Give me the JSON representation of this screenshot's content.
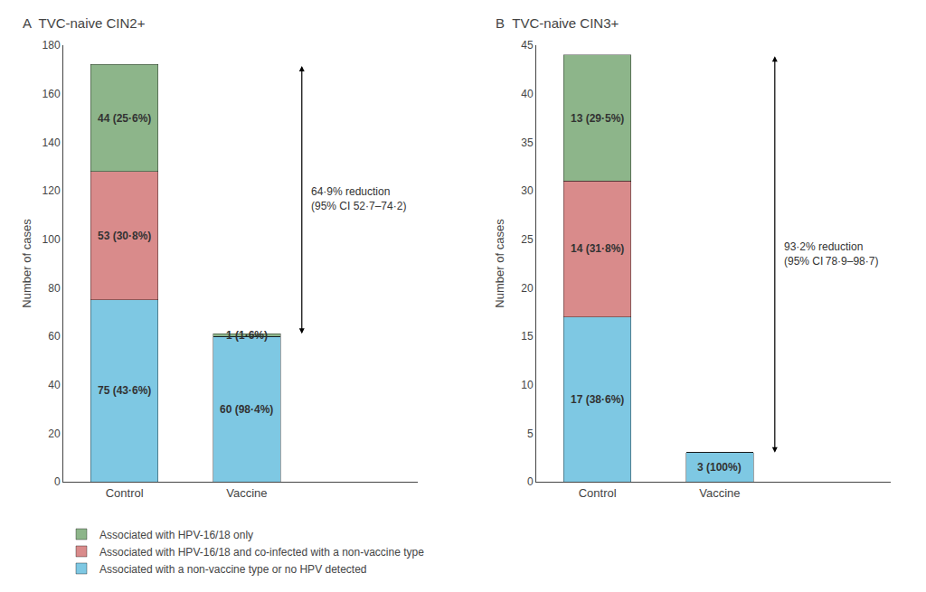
{
  "chart_data": [
    {
      "type": "bar",
      "stacked": true,
      "title": "A  TVC-naive CIN2+",
      "ylabel": "Number of cases",
      "categories": [
        "Control",
        "Vaccine"
      ],
      "series": [
        {
          "name": "Associated with a non-vaccine type or no HPV detected",
          "color": "#7EC8E3",
          "values": [
            75,
            60
          ],
          "value_labels": [
            "75 (43·6%)",
            "60 (98·4%)"
          ]
        },
        {
          "name": "Associated with HPV-16/18 and co-infected with a non-vaccine type",
          "color": "#D98B8B",
          "values": [
            53,
            0
          ],
          "value_labels": [
            "53 (30·8%)",
            null
          ]
        },
        {
          "name": "Associated with HPV-16/18 only",
          "color": "#8DB58A",
          "values": [
            44,
            1
          ],
          "value_labels": [
            "44 (25·6%)",
            "1 (1·6%)"
          ]
        }
      ],
      "ylim": [
        0,
        180
      ],
      "yticks": [
        0,
        20,
        40,
        60,
        80,
        100,
        120,
        140,
        160,
        180
      ],
      "grid": false,
      "data_labels": true,
      "legend": "bottom",
      "annotations": [
        {
          "text": "64·9% reduction\n(95% CI 52·7–74·2)",
          "arrow": [
            61,
            172
          ]
        }
      ]
    },
    {
      "type": "bar",
      "stacked": true,
      "title": "B  TVC-naive CIN3+",
      "ylabel": "Number of cases",
      "categories": [
        "Control",
        "Vaccine"
      ],
      "series": [
        {
          "name": "Associated with a non-vaccine type or no HPV detected",
          "color": "#7EC8E3",
          "values": [
            17,
            3
          ],
          "value_labels": [
            "17 (38·6%)",
            "3 (100%)"
          ]
        },
        {
          "name": "Associated with HPV-16/18 and co-infected with a non-vaccine type",
          "color": "#D98B8B",
          "values": [
            14,
            0
          ],
          "value_labels": [
            "14 (31·8%)",
            null
          ]
        },
        {
          "name": "Associated with HPV-16/18 only",
          "color": "#8DB58A",
          "values": [
            13,
            0
          ],
          "value_labels": [
            "13 (29·5%)",
            null
          ]
        }
      ],
      "ylim": [
        0,
        45
      ],
      "yticks": [
        0,
        5,
        10,
        15,
        20,
        25,
        30,
        35,
        40,
        45
      ],
      "grid": false,
      "data_labels": true,
      "annotations": [
        {
          "text": "93·2% reduction\n(95% CI 78·9–98·7)",
          "arrow": [
            3,
            44
          ]
        }
      ]
    }
  ]
}
